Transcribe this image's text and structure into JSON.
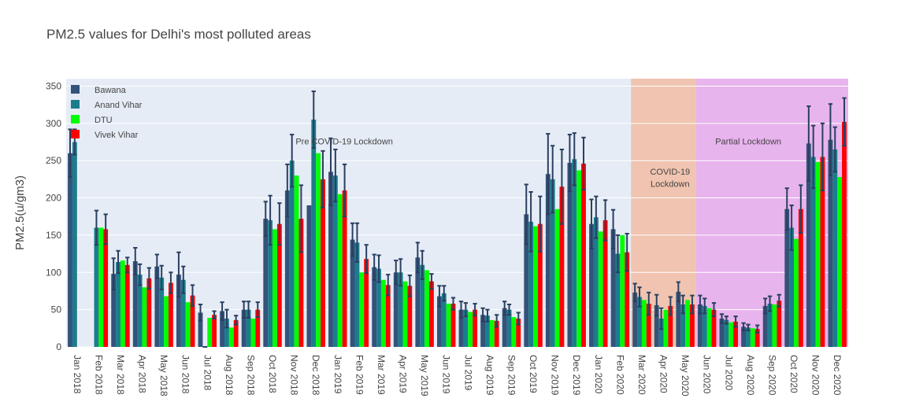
{
  "chart_data": {
    "type": "bar",
    "title": "PM2.5 values for Delhi's most polluted areas",
    "ylabel": "PM2.5(u/gm3)",
    "xlabel": "",
    "ylim": [
      0,
      360
    ],
    "yticks": [
      0,
      50,
      100,
      150,
      200,
      250,
      300,
      350
    ],
    "categories": [
      "Jan 2018",
      "Feb 2018",
      "Mar 2018",
      "Apr 2018",
      "May 2018",
      "Jun 2018",
      "Jul 2018",
      "Aug 2018",
      "Sep 2018",
      "Oct 2018",
      "Nov 2018",
      "Dec 2018",
      "Jan 2019",
      "Feb 2019",
      "Mar 2019",
      "Apr 2019",
      "May 2019",
      "Jun 2019",
      "Jul 2019",
      "Aug 2019",
      "Sep 2019",
      "Oct 2019",
      "Nov 2019",
      "Dec 2019",
      "Jan 2020",
      "Feb 2020",
      "Mar 2020",
      "Apr 2020",
      "May 2020",
      "Jun 2020",
      "Jul 2020",
      "Aug 2020",
      "Sep 2020",
      "Oct 2020",
      "Nov 2020",
      "Dec 2020"
    ],
    "series": [
      {
        "name": "Bawana",
        "color": "#34537a",
        "values": [
          260,
          0,
          98,
          115,
          108,
          97,
          46,
          48,
          50,
          172,
          210,
          190,
          235,
          144,
          107,
          100,
          120,
          68,
          50,
          43,
          52,
          178,
          232,
          247,
          165,
          158,
          73,
          56,
          74,
          57,
          38,
          27,
          55,
          185,
          273,
          278
        ],
        "errors": [
          32,
          0,
          21,
          18,
          16,
          30,
          11,
          12,
          11,
          23,
          35,
          0,
          45,
          22,
          17,
          16,
          20,
          14,
          11,
          9,
          9,
          40,
          54,
          38,
          33,
          26,
          12,
          14,
          13,
          12,
          6,
          5,
          10,
          28,
          50,
          48
        ]
      },
      {
        "name": "Anand Vihar",
        "color": "#1b7d8c",
        "values": [
          275,
          160,
          114,
          97,
          93,
          90,
          0,
          38,
          50,
          170,
          250,
          305,
          230,
          140,
          105,
          100,
          110,
          72,
          50,
          42,
          50,
          168,
          225,
          252,
          174,
          125,
          67,
          38,
          57,
          55,
          36,
          26,
          58,
          160,
          255,
          265
        ],
        "errors": [
          17,
          23,
          15,
          14,
          16,
          18,
          0,
          12,
          11,
          33,
          35,
          38,
          35,
          26,
          18,
          18,
          19,
          10,
          9,
          8,
          7,
          40,
          45,
          35,
          28,
          25,
          13,
          14,
          12,
          10,
          5,
          4,
          10,
          30,
          42,
          30
        ],
        "missing_markers": [
          6
        ]
      },
      {
        "name": "DTU",
        "color": "#00ff00",
        "values": [
          0,
          160,
          116,
          80,
          68,
          60,
          39,
          26,
          38,
          158,
          230,
          260,
          205,
          100,
          90,
          88,
          103,
          58,
          47,
          36,
          40,
          162,
          185,
          237,
          155,
          150,
          63,
          50,
          63,
          52,
          33,
          25,
          57,
          145,
          248,
          228
        ]
      },
      {
        "name": "Vivek Vihar",
        "color": "#ff0000",
        "values": [
          0,
          158,
          110,
          92,
          86,
          69,
          43,
          36,
          50,
          165,
          172,
          225,
          210,
          118,
          83,
          82,
          88,
          58,
          50,
          35,
          38,
          165,
          215,
          246,
          170,
          127,
          58,
          55,
          57,
          50,
          34,
          24,
          62,
          185,
          255,
          302
        ],
        "errors": [
          0,
          20,
          10,
          14,
          14,
          14,
          5,
          6,
          10,
          28,
          45,
          38,
          35,
          19,
          14,
          14,
          10,
          8,
          8,
          8,
          8,
          37,
          50,
          35,
          27,
          25,
          15,
          12,
          12,
          9,
          7,
          5,
          8,
          32,
          45,
          32
        ]
      }
    ],
    "shaded_regions": [
      {
        "label": "Pre COVID-19 Lockdown",
        "from": "Jan 2018",
        "to": "Mar 2020",
        "color": "#e5ecf6"
      },
      {
        "label": "COVID-19 Lockdown",
        "from": "Mar 2020",
        "to": "Jun 2020",
        "color": "#f0c4b0"
      },
      {
        "label": "Partial Lockdown",
        "from": "Jun 2020",
        "to": "Dec 2020",
        "color": "#e8b4ee"
      }
    ],
    "annotations": [
      {
        "text": "Pre COVID-19 Lockdown",
        "x": "Jan 2019",
        "xshift_months": 0.8,
        "y": 272
      },
      {
        "text": "COVID-19",
        "x": "Apr 2020",
        "xshift_months": 0.8,
        "y": 231
      },
      {
        "text": "Lockdown",
        "x": "Apr 2020",
        "xshift_months": 0.8,
        "y": 215
      },
      {
        "text": "Partial Lockdown",
        "x": "Jul 2020",
        "xshift_months": 1.4,
        "y": 272
      }
    ],
    "legend_position": "top-left"
  }
}
